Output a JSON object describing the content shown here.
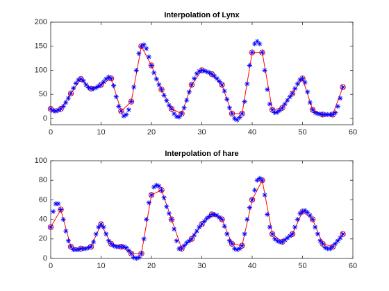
{
  "chart_data": [
    {
      "type": "line",
      "title": "Interpolation of Lynx",
      "xlim": [
        0,
        60
      ],
      "xticks": [
        0,
        10,
        20,
        30,
        40,
        50,
        60
      ],
      "ylim": [
        -13,
        200
      ],
      "yticks": [
        0,
        50,
        100,
        150,
        200
      ],
      "series": [
        {
          "color": "#ff0000",
          "marker": "o",
          "line": true,
          "x": [
            0,
            2,
            4,
            6,
            8,
            10,
            12,
            14,
            16,
            18,
            20,
            22,
            24,
            26,
            28,
            30,
            32,
            34,
            36,
            38,
            40,
            42,
            44,
            46,
            48,
            50,
            52,
            54,
            56,
            58
          ],
          "values": [
            20,
            20,
            52,
            82,
            62,
            70,
            83,
            15,
            35,
            150,
            110,
            60,
            20,
            10,
            70,
            100,
            92,
            70,
            10,
            10,
            137,
            137,
            18,
            22,
            52,
            83,
            18,
            8,
            8,
            65
          ]
        },
        {
          "color": "#0000ff",
          "marker": "*",
          "line": false,
          "x": [
            0,
            0.5,
            1,
            1.5,
            2,
            2.5,
            3,
            3.5,
            4,
            4.5,
            5,
            5.5,
            6,
            6.5,
            7,
            7.5,
            8,
            8.5,
            9,
            9.5,
            10,
            10.5,
            11,
            11.5,
            12,
            12.5,
            13,
            13.5,
            14,
            14.5,
            15,
            15.5,
            16,
            16.5,
            17,
            17.5,
            18,
            18.5,
            19,
            19.5,
            20,
            20.5,
            21,
            21.5,
            22,
            22.5,
            23,
            23.5,
            24,
            24.5,
            25,
            25.5,
            26,
            26.5,
            27,
            27.5,
            28,
            28.5,
            29,
            29.5,
            30,
            30.5,
            31,
            31.5,
            32,
            32.5,
            33,
            33.5,
            34,
            34.5,
            35,
            35.5,
            36,
            36.5,
            37,
            37.5,
            38,
            38.5,
            39,
            39.5,
            40,
            40.5,
            41,
            41.5,
            42,
            42.5,
            43,
            43.5,
            44,
            44.5,
            45,
            45.5,
            46,
            46.5,
            47,
            47.5,
            48,
            48.5,
            49,
            49.5,
            50,
            50.5,
            51,
            51.5,
            52,
            52.5,
            53,
            53.5,
            54,
            54.5,
            55,
            55.5,
            56,
            56.5,
            57,
            57.5,
            58
          ],
          "values": [
            20,
            16,
            15,
            17,
            20,
            25,
            33,
            42,
            52,
            63,
            73,
            80,
            82,
            78,
            70,
            64,
            62,
            62,
            64,
            67,
            70,
            76,
            82,
            86,
            83,
            68,
            45,
            25,
            15,
            5,
            8,
            18,
            35,
            65,
            100,
            135,
            150,
            153,
            145,
            128,
            110,
            95,
            82,
            70,
            60,
            48,
            37,
            27,
            20,
            10,
            4,
            3,
            10,
            22,
            38,
            55,
            70,
            83,
            93,
            98,
            100,
            99,
            97,
            95,
            92,
            88,
            83,
            77,
            70,
            57,
            40,
            22,
            10,
            0,
            -3,
            2,
            10,
            35,
            72,
            110,
            137,
            155,
            160,
            155,
            137,
            100,
            60,
            30,
            18,
            12,
            13,
            17,
            22,
            30,
            38,
            45,
            52,
            62,
            72,
            80,
            83,
            75,
            55,
            33,
            18,
            12,
            10,
            9,
            8,
            8,
            8,
            8,
            8,
            12,
            25,
            42,
            65
          ]
        }
      ]
    },
    {
      "type": "line",
      "title": "Interpolation of hare",
      "xlim": [
        0,
        60
      ],
      "xticks": [
        0,
        10,
        20,
        30,
        40,
        50,
        60
      ],
      "ylim": [
        0,
        100
      ],
      "yticks": [
        0,
        20,
        40,
        60,
        80,
        100
      ],
      "series": [
        {
          "color": "#ff0000",
          "marker": "o",
          "line": true,
          "x": [
            0,
            2,
            4,
            6,
            8,
            10,
            12,
            14,
            16,
            18,
            20,
            22,
            24,
            26,
            28,
            30,
            32,
            34,
            36,
            38,
            40,
            42,
            44,
            46,
            48,
            50,
            52,
            54,
            56,
            58
          ],
          "values": [
            32,
            50,
            12,
            10,
            12,
            35,
            15,
            12,
            5,
            5,
            65,
            70,
            40,
            10,
            20,
            35,
            45,
            40,
            15,
            13,
            60,
            80,
            25,
            17,
            25,
            48,
            40,
            15,
            12,
            25
          ]
        },
        {
          "color": "#0000ff",
          "marker": "*",
          "line": false,
          "x": [
            0,
            0.5,
            1,
            1.5,
            2,
            2.5,
            3,
            3.5,
            4,
            4.5,
            5,
            5.5,
            6,
            6.5,
            7,
            7.5,
            8,
            8.5,
            9,
            9.5,
            10,
            10.5,
            11,
            11.5,
            12,
            12.5,
            13,
            13.5,
            14,
            14.5,
            15,
            15.5,
            16,
            16.5,
            17,
            17.5,
            18,
            18.5,
            19,
            19.5,
            20,
            20.5,
            21,
            21.5,
            22,
            22.5,
            23,
            23.5,
            24,
            24.5,
            25,
            25.5,
            26,
            26.5,
            27,
            27.5,
            28,
            28.5,
            29,
            29.5,
            30,
            30.5,
            31,
            31.5,
            32,
            32.5,
            33,
            33.5,
            34,
            34.5,
            35,
            35.5,
            36,
            36.5,
            37,
            37.5,
            38,
            38.5,
            39,
            39.5,
            40,
            40.5,
            41,
            41.5,
            42,
            42.5,
            43,
            43.5,
            44,
            44.5,
            45,
            45.5,
            46,
            46.5,
            47,
            47.5,
            48,
            48.5,
            49,
            49.5,
            50,
            50.5,
            51,
            51.5,
            52,
            52.5,
            53,
            53.5,
            54,
            54.5,
            55,
            55.5,
            56,
            56.5,
            57,
            57.5,
            58
          ],
          "values": [
            32,
            48,
            56,
            56,
            50,
            40,
            28,
            18,
            12,
            9,
            9,
            9,
            10,
            10,
            10,
            11,
            12,
            17,
            25,
            32,
            35,
            32,
            25,
            18,
            15,
            13,
            12,
            12,
            12,
            12,
            11,
            8,
            5,
            1,
            0,
            1,
            5,
            20,
            40,
            57,
            65,
            73,
            75,
            74,
            70,
            62,
            53,
            46,
            40,
            30,
            18,
            10,
            10,
            13,
            16,
            18,
            20,
            24,
            28,
            32,
            35,
            38,
            41,
            43,
            45,
            45,
            44,
            42,
            40,
            33,
            25,
            18,
            15,
            10,
            9,
            10,
            13,
            25,
            40,
            52,
            60,
            70,
            80,
            82,
            80,
            65,
            45,
            32,
            25,
            20,
            18,
            17,
            17,
            19,
            21,
            23,
            25,
            32,
            40,
            46,
            48,
            49,
            47,
            44,
            40,
            32,
            25,
            18,
            15,
            11,
            10,
            10,
            12,
            15,
            18,
            21,
            25
          ]
        }
      ]
    }
  ]
}
